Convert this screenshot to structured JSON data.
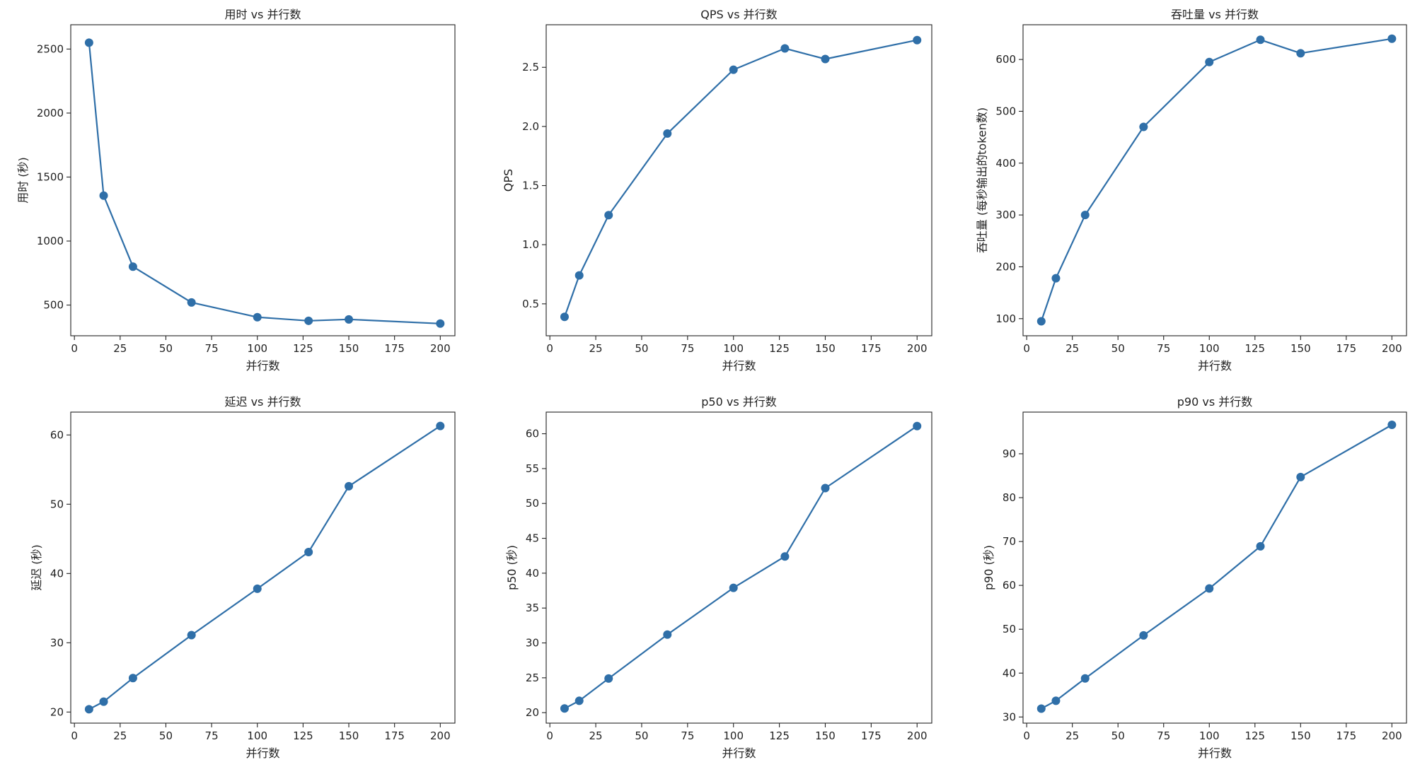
{
  "chart_data": [
    {
      "type": "line",
      "title": "用时 vs 并行数",
      "xlabel": "并行数",
      "ylabel": "用时 (秒)",
      "xlim": [
        -2,
        208
      ],
      "ylim": [
        260,
        2690
      ],
      "xticks": [
        0,
        25,
        50,
        75,
        100,
        125,
        150,
        175,
        200
      ],
      "yticks": [
        500,
        1000,
        1500,
        2000,
        2500
      ],
      "tick_labels_x": [
        "0",
        "25",
        "50",
        "75",
        "100",
        "125",
        "150",
        "175",
        "200"
      ],
      "tick_labels_y": [
        "500",
        "1000",
        "1500",
        "2000",
        "2500"
      ],
      "x": [
        8,
        16,
        32,
        64,
        100,
        128,
        150,
        200
      ],
      "y": [
        2550,
        1355,
        800,
        520,
        405,
        377,
        388,
        355
      ],
      "grid": false,
      "color": "#2f6fa8"
    },
    {
      "type": "line",
      "title": "QPS vs 并行数",
      "xlabel": "并行数",
      "ylabel": "QPS",
      "xlim": [
        -2,
        208
      ],
      "ylim": [
        0.23,
        2.86
      ],
      "xticks": [
        0,
        25,
        50,
        75,
        100,
        125,
        150,
        175,
        200
      ],
      "yticks": [
        0.5,
        1.0,
        1.5,
        2.0,
        2.5
      ],
      "tick_labels_x": [
        "0",
        "25",
        "50",
        "75",
        "100",
        "125",
        "150",
        "175",
        "200"
      ],
      "tick_labels_y": [
        "0.5",
        "1.0",
        "1.5",
        "2.0",
        "2.5"
      ],
      "x": [
        8,
        16,
        32,
        64,
        100,
        128,
        150,
        200
      ],
      "y": [
        0.39,
        0.74,
        1.25,
        1.94,
        2.48,
        2.66,
        2.57,
        2.73
      ],
      "grid": false,
      "color": "#2f6fa8"
    },
    {
      "type": "line",
      "title": "吞吐量 vs 并行数",
      "xlabel": "并行数",
      "ylabel": "吞吐量 (每秒输出的token数)",
      "xlim": [
        -2,
        208
      ],
      "ylim": [
        67,
        667
      ],
      "xticks": [
        0,
        25,
        50,
        75,
        100,
        125,
        150,
        175,
        200
      ],
      "yticks": [
        100,
        200,
        300,
        400,
        500,
        600
      ],
      "tick_labels_x": [
        "0",
        "25",
        "50",
        "75",
        "100",
        "125",
        "150",
        "175",
        "200"
      ],
      "tick_labels_y": [
        "100",
        "200",
        "300",
        "400",
        "500",
        "600"
      ],
      "x": [
        8,
        16,
        32,
        64,
        100,
        128,
        150,
        200
      ],
      "y": [
        95,
        178,
        300,
        470,
        595,
        638,
        612,
        640
      ],
      "grid": false,
      "color": "#2f6fa8"
    },
    {
      "type": "line",
      "title": "延迟 vs 并行数",
      "xlabel": "并行数",
      "ylabel": "延迟 (秒)",
      "xlim": [
        -2,
        208
      ],
      "ylim": [
        18.4,
        63.3
      ],
      "xticks": [
        0,
        25,
        50,
        75,
        100,
        125,
        150,
        175,
        200
      ],
      "yticks": [
        20,
        30,
        40,
        50,
        60
      ],
      "tick_labels_x": [
        "0",
        "25",
        "50",
        "75",
        "100",
        "125",
        "150",
        "175",
        "200"
      ],
      "tick_labels_y": [
        "20",
        "30",
        "40",
        "50",
        "60"
      ],
      "x": [
        8,
        16,
        32,
        64,
        100,
        128,
        150,
        200
      ],
      "y": [
        20.4,
        21.5,
        24.9,
        31.1,
        37.8,
        43.1,
        52.6,
        61.3
      ],
      "grid": false,
      "color": "#2f6fa8"
    },
    {
      "type": "line",
      "title": "p50 vs 并行数",
      "xlabel": "并行数",
      "ylabel": "p50 (秒)",
      "xlim": [
        -2,
        208
      ],
      "ylim": [
        18.5,
        63.1
      ],
      "xticks": [
        0,
        25,
        50,
        75,
        100,
        125,
        150,
        175,
        200
      ],
      "yticks": [
        20,
        25,
        30,
        35,
        40,
        45,
        50,
        55,
        60
      ],
      "tick_labels_x": [
        "0",
        "25",
        "50",
        "75",
        "100",
        "125",
        "150",
        "175",
        "200"
      ],
      "tick_labels_y": [
        "20",
        "25",
        "30",
        "35",
        "40",
        "45",
        "50",
        "55",
        "60"
      ],
      "x": [
        8,
        16,
        32,
        64,
        100,
        128,
        150,
        200
      ],
      "y": [
        20.6,
        21.7,
        24.9,
        31.2,
        37.9,
        42.4,
        52.2,
        61.1
      ],
      "grid": false,
      "color": "#2f6fa8"
    },
    {
      "type": "line",
      "title": "p90 vs 并行数",
      "xlabel": "并行数",
      "ylabel": "p90 (秒)",
      "xlim": [
        -2,
        208
      ],
      "ylim": [
        28.6,
        99.5
      ],
      "xticks": [
        0,
        25,
        50,
        75,
        100,
        125,
        150,
        175,
        200
      ],
      "yticks": [
        30,
        40,
        50,
        60,
        70,
        80,
        90
      ],
      "tick_labels_x": [
        "0",
        "25",
        "50",
        "75",
        "100",
        "125",
        "150",
        "175",
        "200"
      ],
      "tick_labels_y": [
        "30",
        "40",
        "50",
        "60",
        "70",
        "80",
        "90"
      ],
      "x": [
        8,
        16,
        32,
        64,
        100,
        128,
        150,
        200
      ],
      "y": [
        31.9,
        33.7,
        38.8,
        48.6,
        59.3,
        68.9,
        84.7,
        96.6
      ],
      "grid": false,
      "color": "#2f6fa8"
    }
  ]
}
